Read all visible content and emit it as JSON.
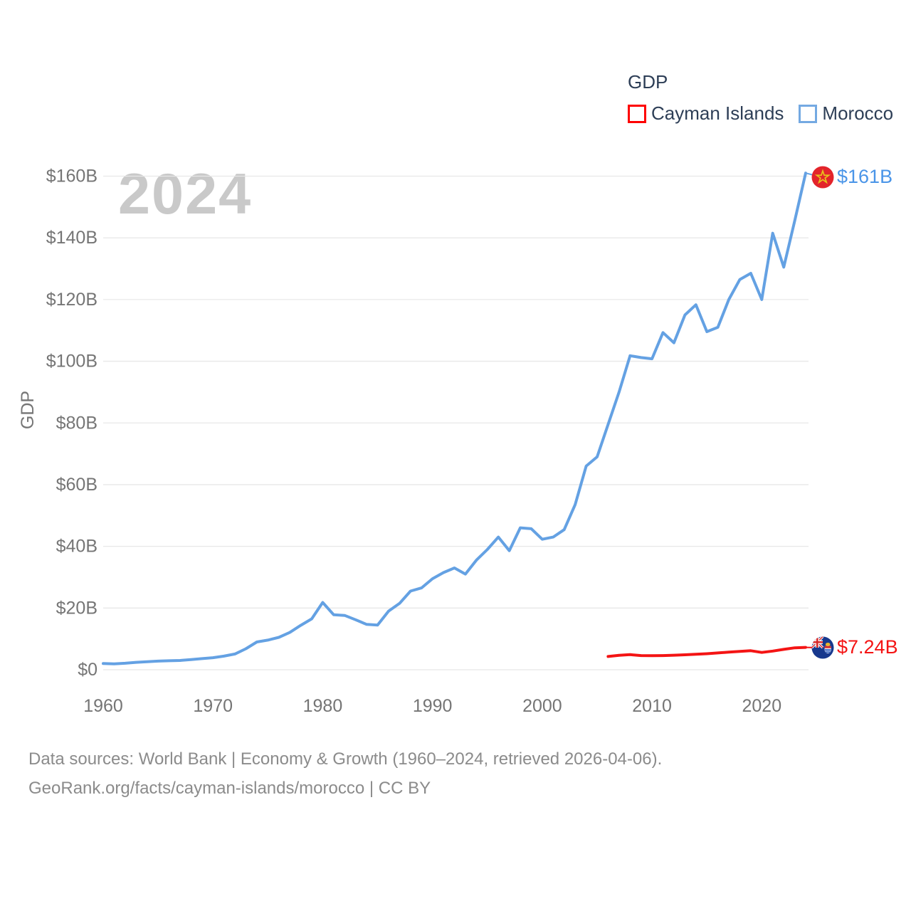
{
  "legend": {
    "title": "GDP",
    "items": [
      {
        "label": "Cayman Islands",
        "color": "#fe0000"
      },
      {
        "label": "Morocco",
        "color": "#74a9e2"
      }
    ]
  },
  "watermark": "2024",
  "chart_data": {
    "type": "line",
    "title": "GDP",
    "ylabel": "GDP",
    "xlabel": "",
    "unit": "current US$, billions",
    "grid": "horizontal",
    "legend_position": "top-right",
    "xlim": [
      1960,
      2024
    ],
    "ylim": [
      0,
      165
    ],
    "x_ticks": [
      "1960",
      "1970",
      "1980",
      "1990",
      "2000",
      "2010",
      "2020"
    ],
    "x_tick_values": [
      1960,
      1970,
      1980,
      1990,
      2000,
      2010,
      2020
    ],
    "y_tick_labels": [
      "$0",
      "$20B",
      "$40B",
      "$60B",
      "$80B",
      "$100B",
      "$120B",
      "$140B",
      "$160B"
    ],
    "y_tick_values": [
      0,
      20,
      40,
      60,
      80,
      100,
      120,
      140,
      160
    ],
    "series": [
      {
        "name": "Cayman Islands",
        "color": "#f41414",
        "start_year": 2006,
        "end_label": "$7.24B",
        "end_value": 7.24,
        "values": [
          4.3,
          4.65,
          4.9,
          4.6,
          4.55,
          4.6,
          4.7,
          4.85,
          5.0,
          5.2,
          5.45,
          5.7,
          5.95,
          6.15,
          5.6,
          6.05,
          6.6,
          7.1,
          7.24
        ]
      },
      {
        "name": "Morocco",
        "color": "#64a1e3",
        "start_year": 1960,
        "end_label": "$161B",
        "end_value": 161,
        "values": [
          2.0,
          1.9,
          2.1,
          2.4,
          2.6,
          2.8,
          2.9,
          3.0,
          3.3,
          3.6,
          3.9,
          4.4,
          5.1,
          6.8,
          9.0,
          9.6,
          10.5,
          12.1,
          14.4,
          16.5,
          21.8,
          17.8,
          17.6,
          16.2,
          14.7,
          14.5,
          19.0,
          21.5,
          25.5,
          26.5,
          29.5,
          31.5,
          33.0,
          31.0,
          35.5,
          39.0,
          43.0,
          38.6,
          46.0,
          45.7,
          42.3,
          43.0,
          45.4,
          53.5,
          66.0,
          69.0,
          79.5,
          90.0,
          101.8,
          101.2,
          100.8,
          109.3,
          106.0,
          115.0,
          118.3,
          109.6,
          111.0,
          120.0,
          126.5,
          128.5,
          120.0,
          141.5,
          130.5,
          145.5,
          161.0
        ]
      }
    ]
  },
  "footer": {
    "line1": "Data sources: World Bank | Economy & Growth (1960–2024, retrieved 2026-04-06).",
    "line2": "GeoRank.org/facts/cayman-islands/morocco | CC BY"
  }
}
